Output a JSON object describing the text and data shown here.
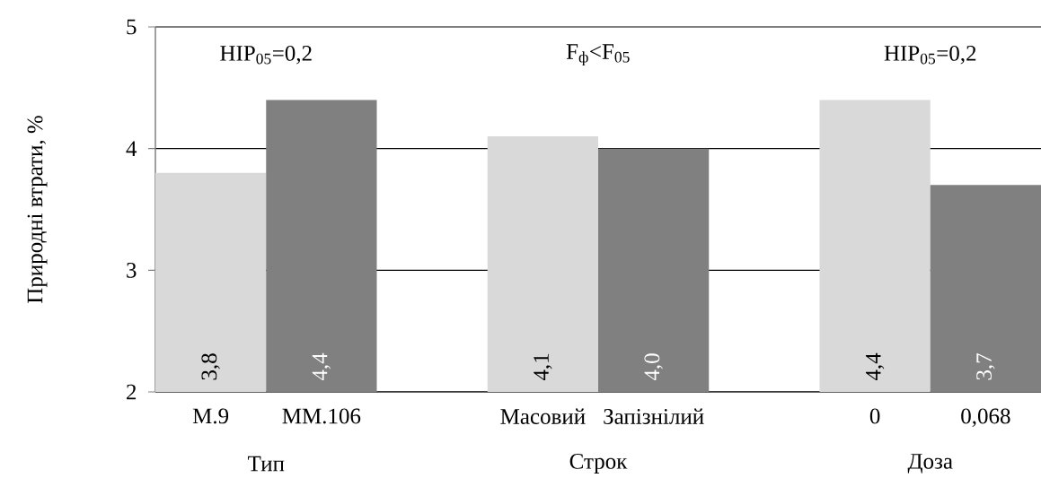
{
  "chart_data": {
    "type": "bar",
    "ylabel": "Природні втрати, %",
    "categories": [
      "М.9",
      "ММ.106",
      null,
      "Масовий",
      "Запізнілий",
      null,
      "0",
      "0,068"
    ],
    "values": [
      3.8,
      4.4,
      null,
      4.1,
      4.0,
      null,
      4.4,
      3.7
    ],
    "value_labels": [
      "3,8",
      "4,4",
      null,
      "4,1",
      "4,0",
      null,
      "4,4",
      "3,7"
    ],
    "colors": [
      "#d9d9d9",
      "#808080",
      "#ffffff",
      "#d9d9d9",
      "#808080",
      "#ffffff",
      "#d9d9d9",
      "#808080"
    ],
    "ylim": [
      2,
      5
    ],
    "yticks": [
      2,
      3,
      4,
      5
    ],
    "grid": "y",
    "annotations": [
      "HIP$_{05}$=0,2",
      "F$_{ф}$<F$_{05}$",
      "HIP$_{05}$=0,2",
      "Тип",
      "Строк",
      "Доза"
    ]
  }
}
